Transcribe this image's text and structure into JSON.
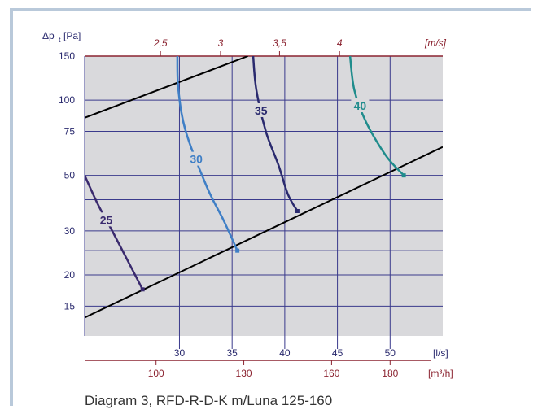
{
  "chart_data": {
    "type": "line",
    "caption": "Diagram 3, RFD-R-D-K m/Luna 125-160",
    "y_axis": {
      "label": "Δp",
      "label_sub": "t",
      "label_unit": "[Pa]",
      "scale": "log",
      "ticks": [
        15,
        20,
        30,
        50,
        75,
        100,
        150
      ],
      "grid_lines": [
        15,
        20,
        25,
        30,
        40,
        50,
        75,
        100,
        150
      ]
    },
    "x_axis": {
      "label": "[l/s]",
      "scale": "linear",
      "range": [
        21,
        55
      ],
      "ticks": [
        30,
        35,
        40,
        45,
        50
      ],
      "grid_lines": [
        30,
        35,
        40,
        45,
        50
      ]
    },
    "secondary_x_axis": {
      "label": "[m³/h]",
      "ticks": [
        100,
        130,
        160,
        180
      ]
    },
    "top_axis": {
      "label": "[m/s]",
      "ticks": [
        "2,5",
        "3",
        "3,5",
        "4"
      ],
      "tick_positions_ls": [
        28.2,
        33.9,
        39.5,
        45.2
      ]
    },
    "operating_lines": [
      {
        "points": [
          [
            21,
            13.5
          ],
          [
            55,
            65
          ]
        ]
      },
      {
        "points": [
          [
            21,
            85
          ],
          [
            36.5,
            150
          ]
        ]
      }
    ],
    "series": [
      {
        "name": "25",
        "color": "#3a2a6e",
        "points": [
          [
            21,
            50
          ],
          [
            22.3,
            38
          ],
          [
            23.8,
            29
          ],
          [
            26.5,
            17.5
          ]
        ]
      },
      {
        "name": "30",
        "color": "#3f7fc6",
        "points": [
          [
            29.8,
            150
          ],
          [
            29.9,
            110
          ],
          [
            30.6,
            75
          ],
          [
            32.6,
            45
          ],
          [
            34.2,
            33
          ],
          [
            35.5,
            25
          ]
        ]
      },
      {
        "name": "35",
        "color": "#2a2a6e",
        "points": [
          [
            37,
            150
          ],
          [
            37.3,
            110
          ],
          [
            38.2,
            75
          ],
          [
            39.4,
            55
          ],
          [
            40.3,
            42
          ],
          [
            41.2,
            36
          ]
        ]
      },
      {
        "name": "40",
        "color": "#1f8c8c",
        "points": [
          [
            46.2,
            150
          ],
          [
            46.6,
            110
          ],
          [
            47.7,
            82
          ],
          [
            49.6,
            60
          ],
          [
            51.3,
            50
          ]
        ]
      }
    ],
    "grid": true,
    "colors": {
      "plot_bg": "#d9d9dc",
      "grid": "#3a3a8c",
      "top_axis": "#8b2330",
      "secondary_axis": "#8b2330",
      "axis_text": "#2a2a6e",
      "frame": "#b9c9da"
    }
  }
}
